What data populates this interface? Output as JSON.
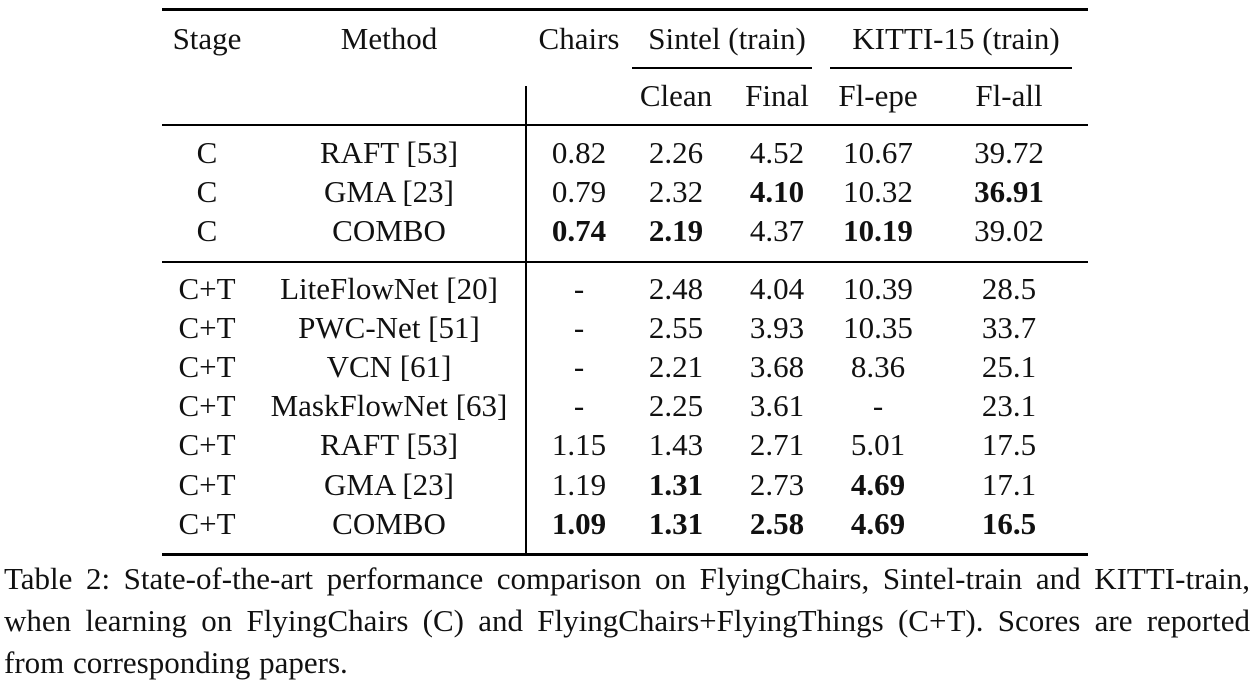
{
  "table": {
    "header_top": {
      "stage": "Stage",
      "method": "Method",
      "chairs": "Chairs",
      "sintel": "Sintel (train)",
      "kitti": "KITTI-15 (train)"
    },
    "header_sub": {
      "clean": "Clean",
      "final": "Final",
      "fl_epe": "Fl-epe",
      "fl_all": "Fl-all"
    },
    "rows": [
      {
        "stage": "C",
        "method": "RAFT [53]",
        "chairs": "0.82",
        "clean": "2.26",
        "final": "4.52",
        "fl_epe": "10.67",
        "fl_all": "39.72",
        "bold": []
      },
      {
        "stage": "C",
        "method": "GMA [23]",
        "chairs": "0.79",
        "clean": "2.32",
        "final": "4.10",
        "fl_epe": "10.32",
        "fl_all": "36.91",
        "bold": [
          "final",
          "fl_all"
        ]
      },
      {
        "stage": "C",
        "method": "COMBO",
        "chairs": "0.74",
        "clean": "2.19",
        "final": "4.37",
        "fl_epe": "10.19",
        "fl_all": "39.02",
        "bold": [
          "chairs",
          "clean",
          "fl_epe"
        ]
      },
      {
        "stage": "C+T",
        "method": "LiteFlowNet [20]",
        "chairs": "-",
        "clean": "2.48",
        "final": "4.04",
        "fl_epe": "10.39",
        "fl_all": "28.5",
        "bold": []
      },
      {
        "stage": "C+T",
        "method": "PWC-Net [51]",
        "chairs": "-",
        "clean": "2.55",
        "final": "3.93",
        "fl_epe": "10.35",
        "fl_all": "33.7",
        "bold": []
      },
      {
        "stage": "C+T",
        "method": "VCN [61]",
        "chairs": "-",
        "clean": "2.21",
        "final": "3.68",
        "fl_epe": "8.36",
        "fl_all": "25.1",
        "bold": []
      },
      {
        "stage": "C+T",
        "method": "MaskFlowNet [63]",
        "chairs": "-",
        "clean": "2.25",
        "final": "3.61",
        "fl_epe": "-",
        "fl_all": "23.1",
        "bold": []
      },
      {
        "stage": "C+T",
        "method": "RAFT [53]",
        "chairs": "1.15",
        "clean": "1.43",
        "final": "2.71",
        "fl_epe": "5.01",
        "fl_all": "17.5",
        "bold": []
      },
      {
        "stage": "C+T",
        "method": "GMA [23]",
        "chairs": "1.19",
        "clean": "1.31",
        "final": "2.73",
        "fl_epe": "4.69",
        "fl_all": "17.1",
        "bold": [
          "clean",
          "fl_epe"
        ]
      },
      {
        "stage": "C+T",
        "method": "COMBO",
        "chairs": "1.09",
        "clean": "1.31",
        "final": "2.58",
        "fl_epe": "4.69",
        "fl_all": "16.5",
        "bold": [
          "chairs",
          "clean",
          "final",
          "fl_epe",
          "fl_all"
        ]
      }
    ]
  },
  "caption": "Table 2: State-of-the-art performance comparison on FlyingChairs, Sintel-train and KITTI-train, when learning on FlyingChairs (C) and FlyingChairs+FlyingThings (C+T). Scores are reported from corresponding papers."
}
